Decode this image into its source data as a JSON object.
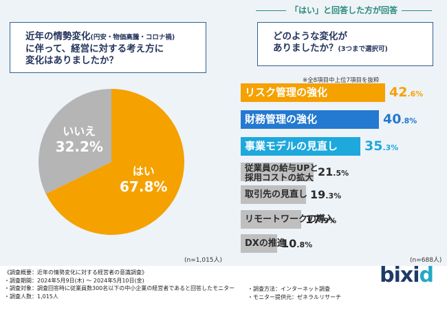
{
  "left_question": {
    "line1_main": "近年の情勢変化",
    "line1_small": "(円安・物価高騰・コロナ禍)",
    "line2": "に伴って、経営に対する考え方に",
    "line3": "変化はありましたか？"
  },
  "right_header": "「はい」と回答した方が回答",
  "right_question": {
    "line1": "どのような変化が",
    "line2_main": "ありましたか？",
    "line2_small": "(3つまで選択可)"
  },
  "note": "※全8項目中上位7項目を抜粋",
  "left_n": "(n=1,015人)",
  "right_n": "(n=688人)",
  "colors": {
    "orange": "#f5a100",
    "blue": "#2479d0",
    "cyan": "#1ea8dc",
    "gray": "#bfbfbf",
    "pie_no": "#b5b5b5"
  },
  "chart_data": [
    {
      "type": "pie",
      "title": "近年の情勢変化に伴って、経営に対する考え方に変化はありましたか？",
      "slices": [
        {
          "label": "はい",
          "value": 67.8,
          "display": "67.8%"
        },
        {
          "label": "いいえ",
          "value": 32.2,
          "display": "32.2%"
        }
      ]
    },
    {
      "type": "bar",
      "orientation": "horizontal",
      "title": "どのような変化がありましたか？",
      "categories": [
        [
          "リスク管理の強化"
        ],
        [
          "財務管理の強化"
        ],
        [
          "事業モデルの見直し"
        ],
        [
          "従業員の給与UPと",
          "採用コストの拡大"
        ],
        [
          "取引先の見直し"
        ],
        [
          "リモートワークの導入"
        ],
        [
          "DXの推進"
        ]
      ],
      "values": [
        42.6,
        40.8,
        35.3,
        21.5,
        19.3,
        17.9,
        10.8
      ],
      "value_int": [
        "42",
        "40",
        "35",
        "21",
        "19",
        "17",
        "10"
      ],
      "value_dec": [
        ".6",
        ".8",
        ".3",
        ".5",
        ".3",
        ".9",
        ".8"
      ],
      "unit": "%",
      "xlim": [
        0,
        50
      ]
    }
  ],
  "footer": {
    "title": "《調査概要：近年の情勢変化に対する経営者の意識調査》",
    "period": "・調査期間：2024年5月9日(木) 〜 2024年5月10日(金)",
    "target": "・調査対象：調査回答時に従業員数300名以下の中小企業の経営者であると回答したモニター",
    "count": "・調査人数：1,015人",
    "method": "・調査方法：インターネット調査",
    "provider": "・モニター提供元：ゼネラルリサーチ",
    "logo_main": "bixi",
    "logo_end": "d"
  }
}
